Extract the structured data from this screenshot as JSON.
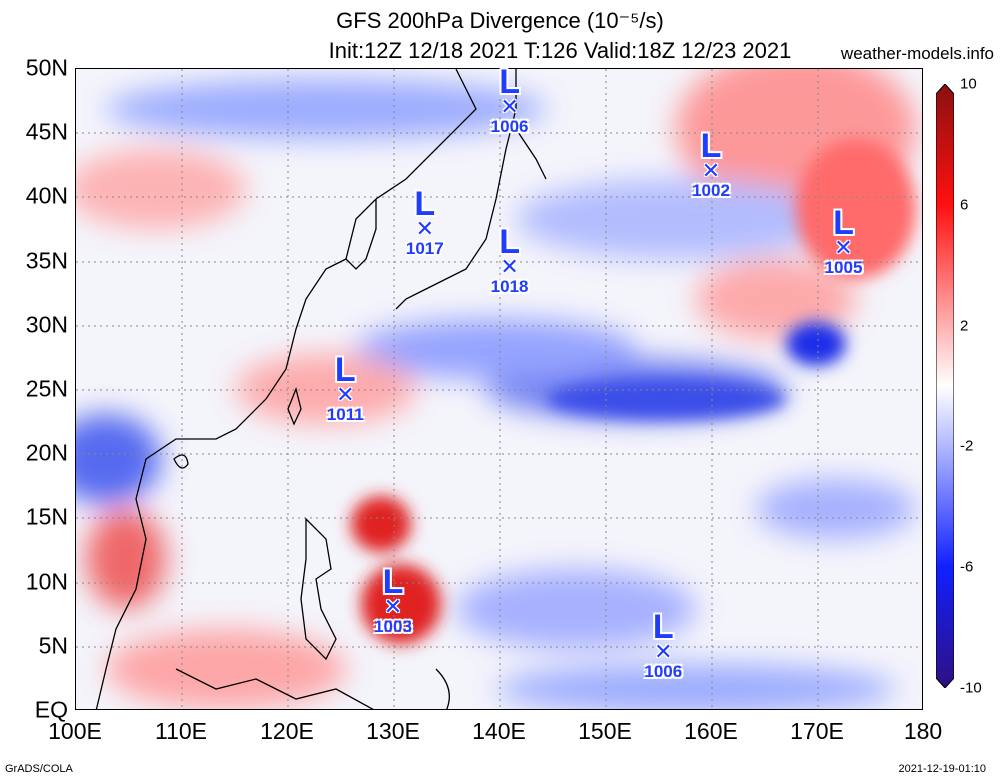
{
  "title_line1": "GFS 200hPa Divergence (10⁻⁵/s)",
  "title_line2": "Init:12Z 12/18 2021 T:126 Valid:18Z 12/23 2021",
  "site": "weather-models.info",
  "lat_labels": [
    "50N",
    "45N",
    "40N",
    "35N",
    "30N",
    "25N",
    "20N",
    "15N",
    "10N",
    "5N",
    "EQ"
  ],
  "lon_labels": [
    "100E",
    "110E",
    "120E",
    "130E",
    "140E",
    "150E",
    "160E",
    "170E",
    "180"
  ],
  "colorbar_ticks": [
    "10",
    "6",
    "2",
    "-2",
    "-6",
    "-10"
  ],
  "footer_left": "GrADS/COLA",
  "footer_right": "2021-12-19-01:10",
  "lows": [
    {
      "letter": "L",
      "pressure": "1006",
      "lon": 141,
      "lat": 47
    },
    {
      "letter": "L",
      "pressure": "1002",
      "lon": 160,
      "lat": 42
    },
    {
      "letter": "L",
      "pressure": "1017",
      "lon": 133,
      "lat": 37.5
    },
    {
      "letter": "L",
      "pressure": "1018",
      "lon": 141,
      "lat": 34.5
    },
    {
      "letter": "L",
      "pressure": "1005",
      "lon": 172.5,
      "lat": 36
    },
    {
      "letter": "L",
      "pressure": "1011",
      "lon": 125.5,
      "lat": 24.5
    },
    {
      "letter": "L",
      "pressure": "1003",
      "lon": 130,
      "lat": 8
    },
    {
      "letter": "L",
      "pressure": "1006",
      "lon": 155.5,
      "lat": 4.5
    }
  ],
  "colors": {
    "positive": "#e8201c",
    "negative": "#2040e0",
    "neutral": "#ffffff"
  }
}
